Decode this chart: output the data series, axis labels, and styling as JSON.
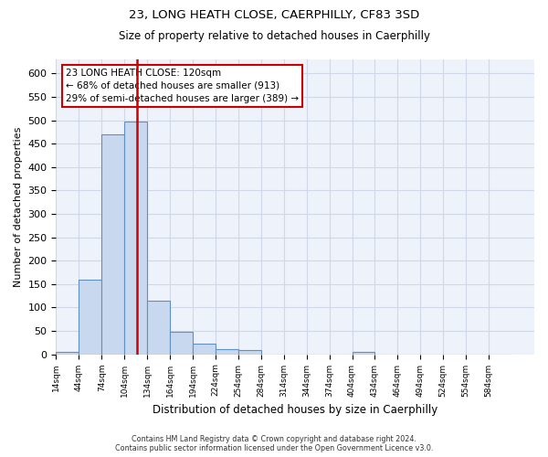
{
  "title_line1": "23, LONG HEATH CLOSE, CAERPHILLY, CF83 3SD",
  "title_line2": "Size of property relative to detached houses in Caerphilly",
  "xlabel": "Distribution of detached houses by size in Caerphilly",
  "ylabel": "Number of detached properties",
  "footer_line1": "Contains HM Land Registry data © Crown copyright and database right 2024.",
  "footer_line2": "Contains public sector information licensed under the Open Government Licence v3.0.",
  "annotation_line1": "23 LONG HEATH CLOSE: 120sqm",
  "annotation_line2": "← 68% of detached houses are smaller (913)",
  "annotation_line3": "29% of semi-detached houses are larger (389) →",
  "bar_edges": [
    14,
    44,
    74,
    104,
    134,
    164,
    194,
    224,
    254,
    284,
    314,
    344,
    374,
    404,
    434,
    464,
    494,
    524,
    554,
    584,
    614
  ],
  "bar_heights": [
    5,
    160,
    470,
    497,
    115,
    48,
    23,
    12,
    10,
    0,
    0,
    0,
    0,
    6,
    0,
    0,
    0,
    0,
    0,
    0
  ],
  "bar_color": "#c8d8ee",
  "bar_edge_color": "#6090c0",
  "vline_x": 120,
  "vline_color": "#cc0000",
  "annotation_box_color": "#cc0000",
  "ylim": [
    0,
    630
  ],
  "yticks": [
    0,
    50,
    100,
    150,
    200,
    250,
    300,
    350,
    400,
    450,
    500,
    550,
    600
  ],
  "grid_color": "#d0d8e8",
  "bg_color": "#eef2fa"
}
